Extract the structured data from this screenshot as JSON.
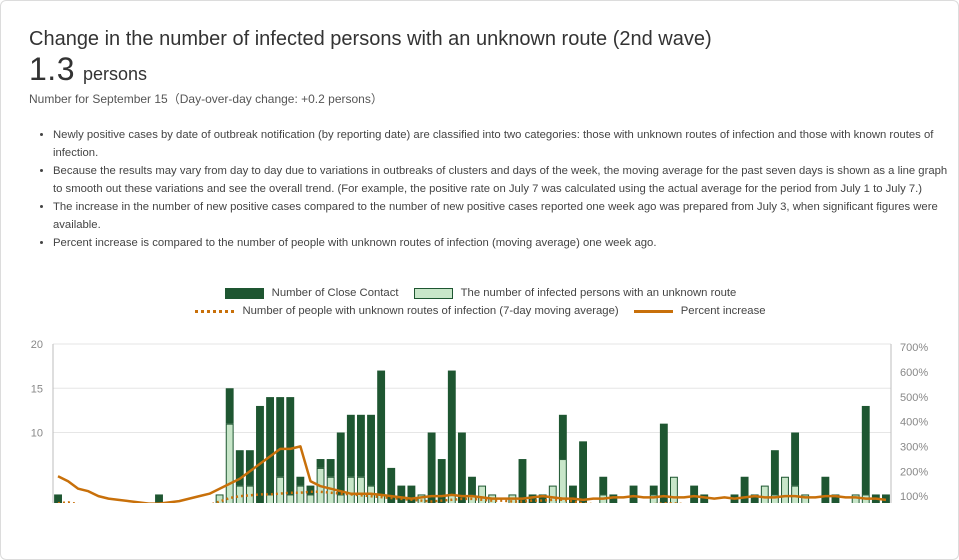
{
  "header": {
    "title": "Change in the number of infected persons with an unknown route (2nd wave)",
    "value": "1.3",
    "unit": "persons",
    "subtext": "Number for September 15（Day-over-day change: +0.2 persons）"
  },
  "notes": [
    "Newly positive cases by date of outbreak notification (by reporting date) are classified into two categories: those with unknown routes of infection and those with known routes of infection.",
    "Because the results may vary from day to day due to variations in outbreaks of clusters and days of the week, the moving average for the past seven days is shown as a line graph to smooth out these variations and see the overall trend. (For example, the positive rate on July 7 was calculated using the actual average for the period from July 1 to July 7.)",
    "The increase in the number of new positive cases compared to the number of new positive cases reported one week ago was prepared from July 3, when significant figures were available.",
    "Percent increase is compared to the number of people with unknown routes of infection (moving average) one week ago."
  ],
  "colors": {
    "close_contact": "#1e5631",
    "unknown_route": "#c8e6c9",
    "moving_average": "#c8700a",
    "percent_increase": "#c8700a",
    "grid": "#e6e6e6",
    "axis_text": "#888888"
  },
  "chart_data": {
    "type": "bar",
    "stacked": true,
    "legend": [
      {
        "name": "Number of Close Contact",
        "kind": "bar",
        "color": "#1e5631"
      },
      {
        "name": "The number of infected persons with an unknown route",
        "kind": "bar",
        "color": "#c8e6c9"
      },
      {
        "name": "Number of people with unknown routes of infection (7-day moving average)",
        "kind": "dotted-line",
        "color": "#c8700a"
      },
      {
        "name": "Percent increase",
        "kind": "line",
        "color": "#c8700a"
      }
    ],
    "y_left": {
      "ticks": [
        "20",
        "15",
        "10"
      ],
      "min": 0,
      "max": 20
    },
    "y_right": {
      "ticks": [
        "700%",
        "600%",
        "500%",
        "400%",
        "300%",
        "200%",
        "100%"
      ],
      "min": 0,
      "max": 700
    },
    "grid": true,
    "series": [
      {
        "name": "The number of infected persons with an unknown route",
        "values": [
          2,
          5,
          0,
          1,
          3,
          2,
          0,
          1,
          0,
          0,
          0,
          0,
          1,
          2,
          0,
          0,
          3,
          11,
          4,
          4,
          2,
          3,
          5,
          3,
          4,
          3,
          6,
          5,
          3,
          5,
          5,
          4,
          3,
          2,
          0,
          2,
          3,
          2,
          1,
          3,
          2,
          3,
          4,
          9,
          3,
          3,
          2,
          1,
          0,
          5,
          7,
          2,
          1,
          1,
          3,
          2,
          2,
          2,
          3,
          3,
          2,
          6,
          2,
          0,
          2,
          2,
          2,
          2,
          1,
          2,
          4,
          3,
          6,
          4,
          3,
          3,
          2,
          2,
          2,
          4,
          3,
          0,
          1
        ],
        "note": "daily bar values read from gridlines; chart is cropped at the bottom edge"
      },
      {
        "name": "Number of Close Contact",
        "values": [
          3,
          2,
          2,
          1,
          1,
          1,
          2,
          1,
          2,
          1,
          3,
          2,
          2,
          2,
          1,
          2,
          3,
          15,
          8,
          8,
          13,
          14,
          14,
          14,
          5,
          4,
          7,
          7,
          10,
          12,
          12,
          12,
          17,
          6,
          4,
          4,
          3,
          10,
          7,
          17,
          10,
          5,
          4,
          3,
          2,
          3,
          7,
          3,
          3,
          4,
          12,
          4,
          9,
          2,
          5,
          3,
          2,
          4,
          2,
          4,
          11,
          5,
          2,
          4,
          3,
          2,
          2,
          3,
          5,
          3,
          4,
          8,
          5,
          10,
          3,
          2,
          5,
          3,
          2,
          3,
          13,
          3,
          3
        ],
        "note": "total bar heights (close contact + unknown route) read from gridlines"
      },
      {
        "name": "Number of people with unknown routes of infection (7-day moving average)",
        "values": [
          2.0,
          2.1,
          1.9,
          1.8,
          1.7,
          1.7,
          1.6,
          1.5,
          1.4,
          1.3,
          1.3,
          1.4,
          1.5,
          1.6,
          1.7,
          1.8,
          2.2,
          2.6,
          2.8,
          2.9,
          3.0,
          3.0,
          3.1,
          3.2,
          3.2,
          3.3,
          3.3,
          3.2,
          3.1,
          3.0,
          2.9,
          2.8,
          2.7,
          2.6,
          2.5,
          2.4,
          2.3,
          2.2,
          2.3,
          2.4,
          2.5,
          2.5,
          2.4,
          2.3,
          2.3,
          2.2,
          2.2,
          2.3,
          2.3,
          2.4,
          2.4,
          2.2,
          2.0,
          1.9,
          1.9,
          1.8,
          1.8,
          1.8,
          1.9,
          1.9,
          2.0,
          2.0,
          1.9,
          1.8,
          1.7,
          1.6,
          1.6,
          1.5,
          1.4,
          1.4,
          1.4,
          1.5,
          1.6,
          1.6,
          1.6,
          1.5,
          1.5,
          1.5,
          1.4,
          1.4,
          1.3,
          1.2,
          1.3
        ]
      },
      {
        "name": "Percent increase",
        "axis": "right",
        "values": [
          180,
          160,
          130,
          120,
          100,
          90,
          85,
          80,
          75,
          70,
          70,
          75,
          80,
          90,
          100,
          110,
          130,
          150,
          170,
          200,
          230,
          260,
          290,
          290,
          300,
          160,
          140,
          130,
          120,
          110,
          110,
          110,
          105,
          100,
          95,
          90,
          95,
          100,
          100,
          105,
          100,
          100,
          95,
          90,
          90,
          90,
          90,
          95,
          100,
          95,
          90,
          90,
          85,
          90,
          90,
          95,
          95,
          100,
          95,
          95,
          100,
          95,
          95,
          100,
          95,
          90,
          95,
          90,
          95,
          100,
          95,
          95,
          100,
          100,
          95,
          95,
          100,
          100,
          95,
          95,
          90,
          90,
          85
        ]
      }
    ]
  }
}
